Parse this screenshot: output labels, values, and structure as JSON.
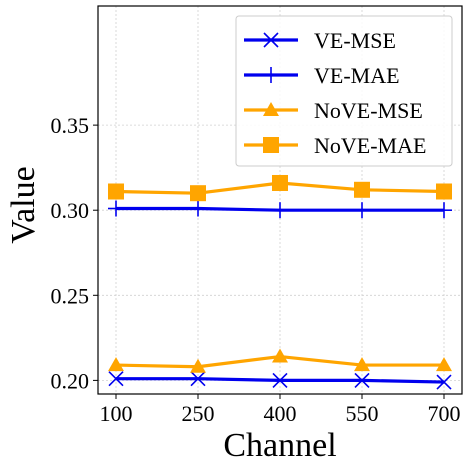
{
  "chart_data": {
    "type": "line",
    "title": "",
    "xlabel": "Channel",
    "ylabel": "Value",
    "x": [
      100,
      250,
      400,
      550,
      700
    ],
    "xticks": [
      "100",
      "250",
      "400",
      "550",
      "700"
    ],
    "yticks": [
      "0.20",
      "0.25",
      "0.30",
      "0.35"
    ],
    "ylim": [
      0.192,
      0.42
    ],
    "grid": true,
    "legend_position": "top-right",
    "series": [
      {
        "name": "VE-MSE",
        "values": [
          0.201,
          0.201,
          0.2,
          0.2,
          0.199
        ],
        "color": "#0000ee",
        "marker": "x"
      },
      {
        "name": "VE-MAE",
        "values": [
          0.301,
          0.301,
          0.3,
          0.3,
          0.3
        ],
        "color": "#0000ee",
        "marker": "plus"
      },
      {
        "name": "NoVE-MSE",
        "values": [
          0.209,
          0.208,
          0.214,
          0.209,
          0.209
        ],
        "color": "#ffa500",
        "marker": "triangle"
      },
      {
        "name": "NoVE-MAE",
        "values": [
          0.311,
          0.31,
          0.316,
          0.312,
          0.311
        ],
        "color": "#ffa500",
        "marker": "square"
      }
    ]
  }
}
